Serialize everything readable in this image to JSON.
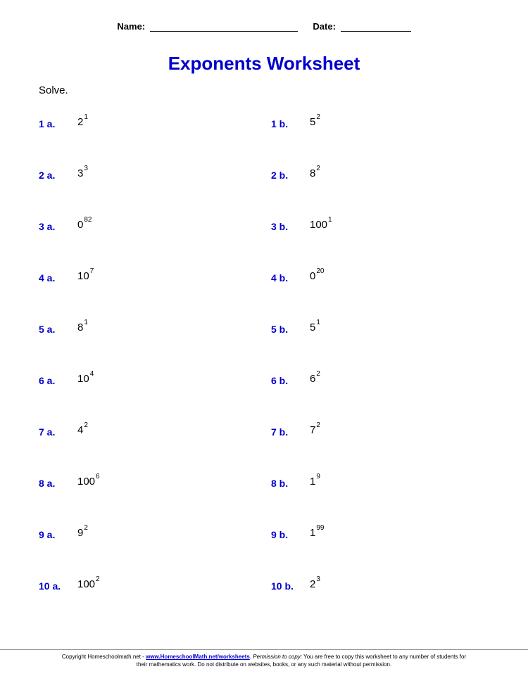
{
  "header": {
    "name_label": "Name:",
    "date_label": "Date:"
  },
  "title": "Exponents Worksheet",
  "instruction": "Solve.",
  "colors": {
    "accent": "#0000cc",
    "text": "#000000",
    "background": "#ffffff"
  },
  "typography": {
    "title_fontsize": 26,
    "body_fontsize": 15,
    "label_fontsize": 14,
    "exponent_fontsize": 10,
    "footer_fontsize": 8
  },
  "problems": [
    {
      "num_a": "1 a.",
      "base_a": "2",
      "exp_a": "1",
      "num_b": "1 b.",
      "base_b": "5",
      "exp_b": "2"
    },
    {
      "num_a": "2 a.",
      "base_a": "3",
      "exp_a": "3",
      "num_b": "2 b.",
      "base_b": "8",
      "exp_b": "2"
    },
    {
      "num_a": "3 a.",
      "base_a": "0",
      "exp_a": "82",
      "num_b": "3 b.",
      "base_b": "100",
      "exp_b": "1"
    },
    {
      "num_a": "4 a.",
      "base_a": "10",
      "exp_a": "7",
      "num_b": "4 b.",
      "base_b": "0",
      "exp_b": "20"
    },
    {
      "num_a": "5 a.",
      "base_a": "8",
      "exp_a": "1",
      "num_b": "5 b.",
      "base_b": "5",
      "exp_b": "1"
    },
    {
      "num_a": "6 a.",
      "base_a": "10",
      "exp_a": "4",
      "num_b": "6 b.",
      "base_b": "6",
      "exp_b": "2"
    },
    {
      "num_a": "7 a.",
      "base_a": "4",
      "exp_a": "2",
      "num_b": "7 b.",
      "base_b": "7",
      "exp_b": "2"
    },
    {
      "num_a": "8 a.",
      "base_a": "100",
      "exp_a": "6",
      "num_b": "8 b.",
      "base_b": "1",
      "exp_b": "9"
    },
    {
      "num_a": "9 a.",
      "base_a": "9",
      "exp_a": "2",
      "num_b": "9 b.",
      "base_b": "1",
      "exp_b": "99"
    },
    {
      "num_a": "10 a.",
      "base_a": "100",
      "exp_a": "2",
      "num_b": "10 b.",
      "base_b": "2",
      "exp_b": "3"
    }
  ],
  "footer": {
    "copyright_prefix": "Copyright Homeschoolmath.net - ",
    "link_text": "www.HomeschoolMath.net/worksheets",
    "permission_label": "Permission to copy:",
    "permission_text": " You are free to copy this worksheet to any number of students for their mathematics work. Do not distribute on websites, books, or any such material without permission."
  }
}
